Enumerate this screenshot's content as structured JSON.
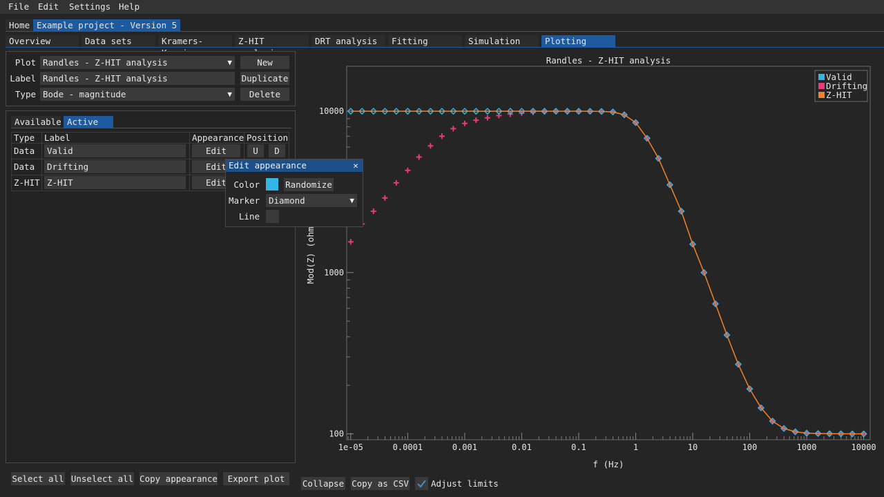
{
  "menu": [
    "File",
    "Edit",
    "Settings",
    "Help"
  ],
  "project_tabs": [
    "Home",
    "Example project - Version 5"
  ],
  "section_tabs": [
    "Overview",
    "Data sets",
    "Kramers-Kronig",
    "Z-HIT analysis",
    "DRT analysis",
    "Fitting",
    "Simulation",
    "Plotting"
  ],
  "settings": {
    "plot_label": "Plot",
    "plot_value": "Randles - Z-HIT analysis",
    "label_label": "Label",
    "label_value": "Randles - Z-HIT analysis",
    "type_label": "Type",
    "type_value": "Bode - magnitude",
    "new_button": "New",
    "duplicate_button": "Duplicate",
    "delete_button": "Delete"
  },
  "series_tabs": [
    "Available",
    "Active"
  ],
  "table": {
    "headers": [
      "Type",
      "Label",
      "Appearance",
      "Position"
    ],
    "rows": [
      {
        "type": "Data",
        "label": "Valid",
        "edit": "Edit",
        "up": "U",
        "down": "D"
      },
      {
        "type": "Data",
        "label": "Drifting",
        "edit": "Edit"
      },
      {
        "type": "Z-HIT",
        "label": "Z-HIT",
        "edit": "Edit"
      }
    ]
  },
  "popup": {
    "title": "Edit appearance",
    "close": "✕",
    "color_label": "Color",
    "color_value": "#33b5e5",
    "randomize_button": "Randomize",
    "marker_label": "Marker",
    "marker_value": "Diamond",
    "line_label": "Line"
  },
  "bottom_left": {
    "select_all": "Select all",
    "unselect_all": "Unselect all",
    "copy_appearance": "Copy appearance",
    "export_plot": "Export plot"
  },
  "bottom_right": {
    "collapse": "Collapse",
    "copy_csv": "Copy as CSV",
    "adjust_limits": "Adjust limits",
    "adjust_limits_checked": true
  },
  "colors": {
    "accent": "#1d5aa0",
    "valid": "#33b5e5",
    "drifting": "#e83c78",
    "zhit": "#f08228"
  },
  "chart_data": {
    "type": "scatter",
    "title": "Randles - Z-HIT analysis",
    "xlabel": "f (Hz)",
    "ylabel": "Mod(Z) (ohm)",
    "x_scale": "log",
    "y_scale": "log",
    "xlim": [
      8.5e-06,
      13000
    ],
    "ylim": [
      92,
      19000
    ],
    "x_ticks": [
      1e-05,
      0.0001,
      0.001,
      0.01,
      0.1,
      1,
      10,
      100,
      1000,
      10000
    ],
    "x_tick_labels": [
      "1e-05",
      "0.0001",
      "0.001",
      "0.01",
      "0.1",
      "1",
      "10",
      "100",
      "1000",
      "10000"
    ],
    "y_ticks": [
      100,
      1000,
      10000
    ],
    "y_tick_labels": [
      "100",
      "1000",
      "10000"
    ],
    "legend_position": "top-right",
    "x": [
      1e-05,
      1.58e-05,
      2.51e-05,
      3.98e-05,
      6.31e-05,
      0.0001,
      0.000158,
      0.000251,
      0.000398,
      0.000631,
      0.001,
      0.00158,
      0.00251,
      0.00398,
      0.00631,
      0.01,
      0.0158,
      0.0251,
      0.0398,
      0.0631,
      0.1,
      0.158,
      0.251,
      0.398,
      0.631,
      1,
      1.58,
      2.51,
      3.98,
      6.31,
      10,
      15.8,
      25.1,
      39.8,
      63.1,
      100,
      158,
      251,
      398,
      631,
      1000,
      1580,
      2510,
      3980,
      6310,
      10000
    ],
    "series": [
      {
        "name": "Valid",
        "marker": "diamond",
        "values": [
          10000,
          10000,
          10000,
          10000,
          10000,
          10000,
          10000,
          10000,
          10000,
          10000,
          10000,
          10000,
          10000,
          10000,
          10000,
          10000,
          10000,
          10000,
          10000,
          10000,
          10000,
          9990,
          9975,
          9900,
          9500,
          8500,
          6800,
          5100,
          3500,
          2400,
          1500,
          1000,
          640,
          410,
          270,
          190,
          145,
          120,
          108,
          103,
          101,
          100.5,
          100.2,
          100.1,
          100,
          100
        ]
      },
      {
        "name": "Drifting",
        "marker": "plus",
        "values": [
          1550,
          2000,
          2400,
          2900,
          3600,
          4300,
          5200,
          6100,
          7000,
          7800,
          8400,
          8800,
          9100,
          9400,
          9600,
          9750,
          9850,
          9920,
          9960,
          9980,
          9990,
          9985,
          9975,
          9900,
          9500,
          8500,
          6800,
          5100,
          3500,
          2400,
          1500,
          1000,
          640,
          410,
          270,
          190,
          145,
          120,
          108,
          103,
          101,
          100.5,
          100.2,
          100.1,
          100,
          100
        ]
      },
      {
        "name": "Z-HIT",
        "marker": "line",
        "values": [
          10000,
          10000,
          10000,
          10000,
          10000,
          10000,
          10000,
          10000,
          10000,
          10000,
          10000,
          10000,
          10000,
          10000,
          10000,
          10000,
          10000,
          10000,
          10000,
          10000,
          10000,
          9990,
          9975,
          9900,
          9500,
          8500,
          6800,
          5100,
          3500,
          2400,
          1500,
          1000,
          640,
          410,
          270,
          190,
          145,
          120,
          108,
          103,
          101,
          100.5,
          100.2,
          100.1,
          100,
          100
        ]
      }
    ]
  }
}
